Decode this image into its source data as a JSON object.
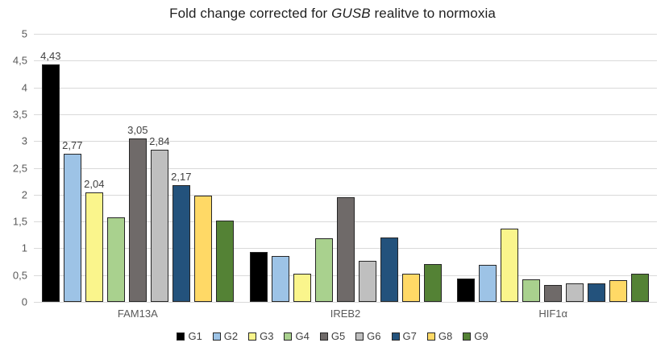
{
  "title": {
    "text_before_gene": "Fold change corrected for ",
    "gene": "GUSB",
    "text_after_gene": " realitve to normoxia"
  },
  "axis": {
    "y_tick_labels": [
      "0",
      "0,5",
      "1",
      "1,5",
      "2",
      "2,5",
      "3",
      "3,5",
      "4",
      "4,5",
      "5"
    ]
  },
  "chart_data": {
    "type": "bar",
    "title": "Fold change corrected for GUSB realitve to normoxia",
    "categories": [
      "FAM13A",
      "IREB2",
      "HIF1α"
    ],
    "series": [
      {
        "name": "G1",
        "color": "#000000",
        "values": [
          4.43,
          0.93,
          0.43
        ],
        "labels": [
          "4,43",
          null,
          null
        ]
      },
      {
        "name": "G2",
        "color": "#9DC3E6",
        "values": [
          2.77,
          0.85,
          0.69
        ],
        "labels": [
          "2,77",
          null,
          null
        ]
      },
      {
        "name": "G3",
        "color": "#FAF58C",
        "values": [
          2.04,
          0.53,
          1.37
        ],
        "labels": [
          "2,04",
          null,
          null
        ]
      },
      {
        "name": "G4",
        "color": "#A9D18E",
        "values": [
          1.58,
          1.19,
          0.42
        ],
        "labels": [
          null,
          null,
          null
        ]
      },
      {
        "name": "G5",
        "color": "#6F6A69",
        "values": [
          3.05,
          1.95,
          0.31
        ],
        "labels": [
          "3,05",
          null,
          null
        ]
      },
      {
        "name": "G6",
        "color": "#BFBFBF",
        "values": [
          2.84,
          0.77,
          0.35
        ],
        "labels": [
          "2,84",
          null,
          null
        ]
      },
      {
        "name": "G7",
        "color": "#23527C",
        "values": [
          2.17,
          1.2,
          0.35
        ],
        "labels": [
          "2,17",
          null,
          null
        ]
      },
      {
        "name": "G8",
        "color": "#FFD966",
        "values": [
          1.98,
          0.53,
          0.41
        ],
        "labels": [
          null,
          null,
          null
        ]
      },
      {
        "name": "G9",
        "color": "#548235",
        "values": [
          1.51,
          0.71,
          0.52
        ],
        "labels": [
          null,
          null,
          null
        ]
      }
    ],
    "ylim": [
      0,
      5
    ],
    "ytick_step": 0.5,
    "grid": true,
    "xlabel": "",
    "ylabel": "",
    "legend_position": "bottom",
    "decimal_separator": ","
  },
  "colors": {
    "gridline": "#D9D9D9",
    "axis_text": "#595959",
    "data_label_text": "#404040",
    "bar_border": "#262626",
    "title_text": "#1F1F1F",
    "legend_text": "#404040"
  }
}
